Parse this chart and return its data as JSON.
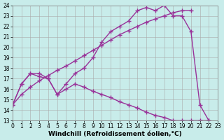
{
  "background_color": "#c8ecea",
  "grid_color": "#aaaaaa",
  "line_color": "#993399",
  "xlabel": "Windchill (Refroidissement éolien,°C)",
  "xlim": [
    0,
    23
  ],
  "ylim": [
    13,
    24
  ],
  "yticks": [
    13,
    14,
    15,
    16,
    17,
    18,
    19,
    20,
    21,
    22,
    23,
    24
  ],
  "xticks": [
    0,
    1,
    2,
    3,
    4,
    5,
    6,
    7,
    8,
    9,
    10,
    11,
    12,
    13,
    14,
    15,
    16,
    17,
    18,
    19,
    20,
    21,
    22,
    23
  ],
  "line1_x": [
    0,
    1,
    2,
    3,
    4,
    5,
    6,
    7,
    8,
    9,
    10,
    11,
    12,
    13,
    14,
    15,
    16,
    17,
    18,
    19,
    20,
    21,
    22,
    23
  ],
  "line1_y": [
    14.5,
    16.5,
    17.5,
    17.5,
    17.0,
    15.5,
    16.5,
    17.5,
    18.0,
    19.0,
    20.5,
    21.5,
    22.0,
    22.5,
    23.5,
    23.8,
    23.5,
    24.0,
    23.0,
    23.0,
    21.5,
    14.5,
    13.0,
    12.8
  ],
  "line2_x": [
    0,
    1,
    2,
    3,
    4,
    5,
    6,
    7,
    8,
    9,
    10,
    11,
    12,
    13,
    14,
    15,
    16,
    17,
    18,
    19,
    20
  ],
  "line2_y": [
    14.5,
    15.5,
    16.2,
    16.8,
    17.3,
    17.8,
    18.2,
    18.7,
    19.2,
    19.7,
    20.2,
    20.7,
    21.2,
    21.6,
    22.0,
    22.4,
    22.7,
    23.0,
    23.3,
    23.5,
    23.5
  ],
  "line3_x": [
    0,
    1,
    2,
    3,
    4,
    5,
    6,
    7,
    8,
    9,
    10,
    11,
    12,
    13,
    14,
    15,
    16,
    17,
    18,
    19,
    20,
    21,
    22,
    23
  ],
  "line3_y": [
    14.5,
    16.5,
    17.5,
    17.2,
    17.0,
    15.5,
    16.0,
    16.5,
    16.2,
    15.8,
    15.5,
    15.2,
    14.8,
    14.5,
    14.2,
    13.8,
    13.5,
    13.3,
    13.0,
    13.0,
    13.0,
    13.0,
    13.0,
    12.8
  ],
  "marker": "+",
  "markersize": 4,
  "linewidth": 1.0,
  "xlabel_fontsize": 6.5,
  "tick_fontsize": 5.5
}
